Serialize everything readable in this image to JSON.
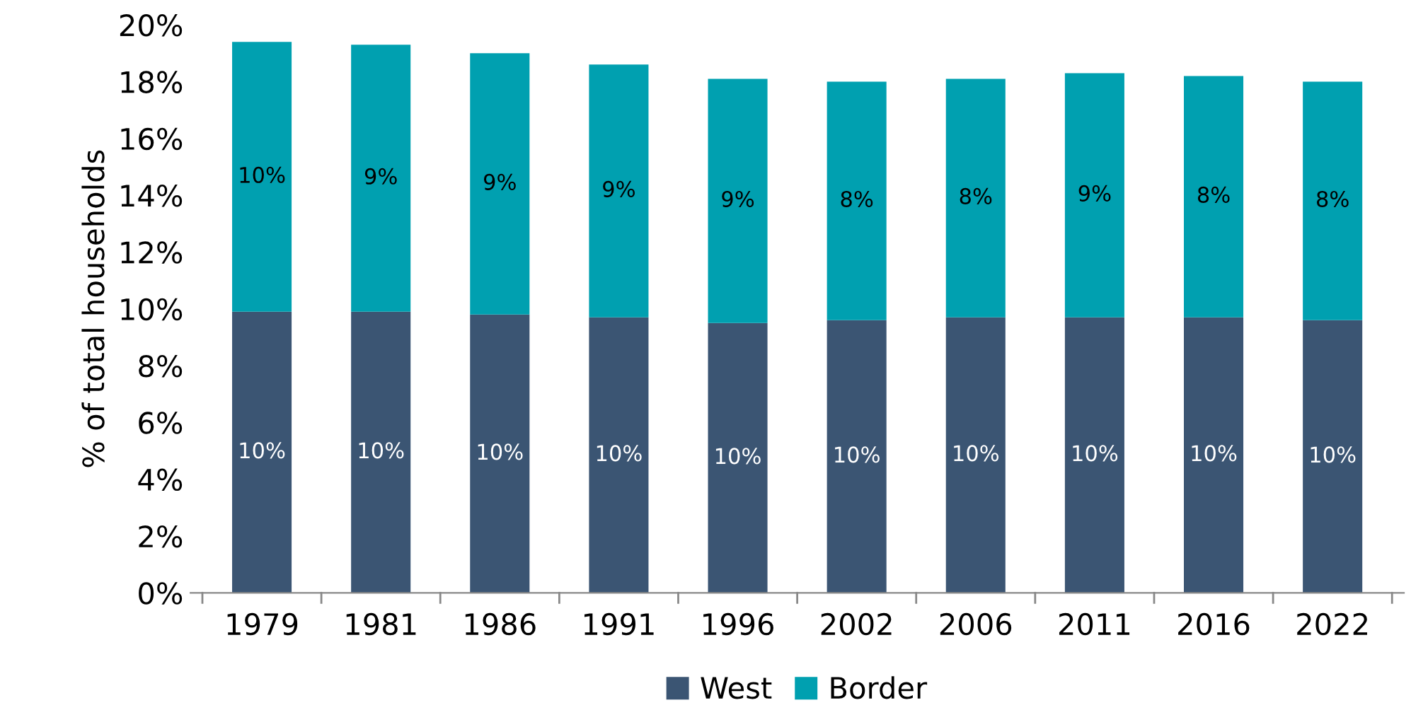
{
  "chart_data": {
    "type": "bar",
    "stacked": true,
    "ylabel": "% of total households",
    "categories": [
      "1979",
      "1981",
      "1986",
      "1991",
      "1996",
      "2002",
      "2006",
      "2011",
      "2016",
      "2022"
    ],
    "series": [
      {
        "name": "West",
        "color": "#3b5573",
        "values": [
          9.9,
          9.9,
          9.8,
          9.7,
          9.5,
          9.6,
          9.7,
          9.7,
          9.7,
          9.6
        ],
        "value_labels": [
          "10%",
          "10%",
          "10%",
          "10%",
          "10%",
          "10%",
          "10%",
          "10%",
          "10%",
          "10%"
        ]
      },
      {
        "name": "Border",
        "color": "#00a0b0",
        "values": [
          9.5,
          9.4,
          9.2,
          8.9,
          8.6,
          8.4,
          8.4,
          8.6,
          8.5,
          8.4
        ],
        "value_labels": [
          "10%",
          "9%",
          "9%",
          "9%",
          "9%",
          "8%",
          "8%",
          "9%",
          "8%",
          "8%"
        ]
      }
    ],
    "ylim": [
      0,
      20
    ],
    "yticks": [
      {
        "value": 0,
        "label": "0%"
      },
      {
        "value": 2,
        "label": "2%"
      },
      {
        "value": 4,
        "label": "4%"
      },
      {
        "value": 6,
        "label": "6%"
      },
      {
        "value": 8,
        "label": "8%"
      },
      {
        "value": 10,
        "label": "10%"
      },
      {
        "value": 12,
        "label": "12%"
      },
      {
        "value": 14,
        "label": "14%"
      },
      {
        "value": 16,
        "label": "16%"
      },
      {
        "value": 18,
        "label": "18%"
      },
      {
        "value": 20,
        "label": "20%"
      }
    ],
    "grid": false,
    "legend": "bottom"
  }
}
